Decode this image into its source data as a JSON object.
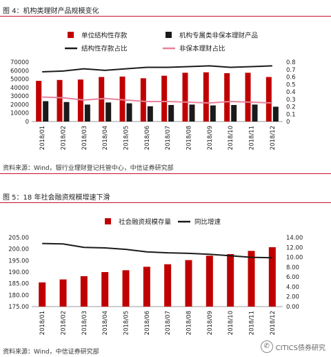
{
  "fig4": {
    "caption": "图 4：机构类理财产品规模变化",
    "source": "资料来源：Wind，银行业理财登记托管中心，中信证券研究部",
    "legend": [
      "单位结构性存款",
      "机构专属类非保本理财产品",
      "结构性存款占比",
      "非保本理财占比"
    ]
  },
  "fig5": {
    "caption": "图 5：18 年社会融资规模增速下滑",
    "source": "资料来源：Wind，中信证券研究部",
    "legend": [
      "社会融资规模存量",
      "同比增速"
    ]
  },
  "watermark": {
    "text": "CITICS债券研究",
    "icon": "wechat-icon"
  },
  "colors": {
    "bar_red": "#c00000",
    "bar_black": "#1a1a1a",
    "line_black": "#1a1a1a",
    "line_pink": "#e8829a",
    "rule_red": "#c8102e"
  },
  "chart_data": [
    {
      "type": "bar",
      "categories": [
        "2018/01",
        "2018/02",
        "2018/03",
        "2018/04",
        "2018/05",
        "2018/06",
        "2018/07",
        "2018/08",
        "2018/09",
        "2018/10",
        "2018/11",
        "2018/12"
      ],
      "series": [
        {
          "name": "单位结构性存款",
          "type": "bar",
          "axis": "left",
          "values": [
            48000,
            49000,
            49500,
            52500,
            53000,
            51000,
            54000,
            57500,
            58000,
            57000,
            57500,
            52500
          ]
        },
        {
          "name": "机构专属类非保本理财产品",
          "type": "bar",
          "axis": "left",
          "values": [
            24000,
            23000,
            20000,
            22500,
            21500,
            18000,
            19500,
            20000,
            19000,
            19500,
            20000,
            17500
          ]
        },
        {
          "name": "结构性存款占比",
          "type": "line",
          "axis": "right",
          "values": [
            0.67,
            0.68,
            0.71,
            0.69,
            0.71,
            0.73,
            0.73,
            0.74,
            0.75,
            0.73,
            0.74,
            0.75
          ]
        },
        {
          "name": "非保本理财占比",
          "type": "line",
          "axis": "right",
          "values": [
            0.33,
            0.32,
            0.29,
            0.31,
            0.29,
            0.27,
            0.27,
            0.26,
            0.25,
            0.27,
            0.26,
            0.25
          ]
        }
      ],
      "ylim": [
        0,
        70000
      ],
      "yticks": [
        "0",
        "10000",
        "20000",
        "30000",
        "40000",
        "50000",
        "60000",
        "70000"
      ],
      "y2lim": [
        0,
        0.8
      ],
      "y2ticks": [
        "0",
        "0.1",
        "0.2",
        "0.3",
        "0.4",
        "0.5",
        "0.6",
        "0.7",
        "0.8"
      ],
      "legend_position": "top"
    },
    {
      "type": "bar",
      "categories": [
        "2018/01",
        "2018/02",
        "2018/03",
        "2018/04",
        "2018/05",
        "2018/06",
        "2018/07",
        "2018/08",
        "2018/09",
        "2018/10",
        "2018/11",
        "2018/12"
      ],
      "series": [
        {
          "name": "社会融资规模存量",
          "type": "bar",
          "axis": "left",
          "values": [
            185.5,
            186.8,
            188.2,
            190.0,
            190.8,
            192.3,
            193.4,
            195.2,
            197.1,
            197.8,
            199.2,
            200.8
          ]
        },
        {
          "name": "同比增速",
          "type": "line",
          "axis": "right",
          "values": [
            12.8,
            12.7,
            12.0,
            11.9,
            11.6,
            11.1,
            10.9,
            10.8,
            10.6,
            10.3,
            10.0,
            9.9
          ]
        }
      ],
      "ylim": [
        175,
        205
      ],
      "yticks": [
        "175.00",
        "180.00",
        "185.00",
        "190.00",
        "195.00",
        "200.00",
        "205.00"
      ],
      "y2lim": [
        0,
        14
      ],
      "y2ticks": [
        "0.00",
        "2.00",
        "4.00",
        "6.00",
        "8.00",
        "10.00",
        "12.00",
        "14.00"
      ],
      "legend_position": "top"
    }
  ]
}
